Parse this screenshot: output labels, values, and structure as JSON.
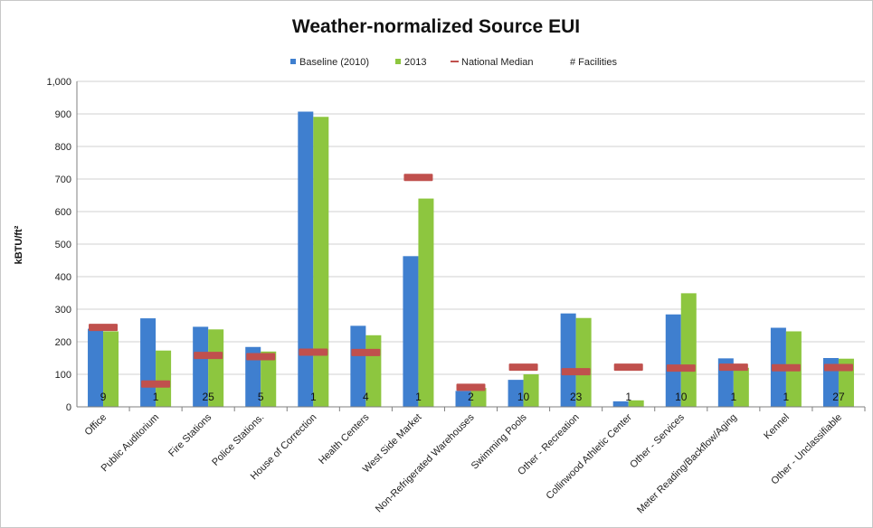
{
  "chart_data": {
    "type": "bar",
    "title": "Weather-normalized Source EUI",
    "ylabel": "kBTU/ft²",
    "xlabel": "",
    "ylim": [
      0,
      1000
    ],
    "yticks": [
      0,
      100,
      200,
      300,
      400,
      500,
      600,
      700,
      800,
      900,
      1000
    ],
    "ytick_labels": [
      "0",
      "100",
      "200",
      "300",
      "400",
      "500",
      "600",
      "700",
      "800",
      "900",
      "1,000"
    ],
    "grid": true,
    "legend_position": "top",
    "categories": [
      "Office",
      "Public Auditorium",
      "Fire Stations",
      "Police Stations.",
      "House of Correction",
      "Health Centers",
      "West Side Market",
      "Non-Refrigerated Warehouses",
      "Swimming Pools",
      "Other - Recreation",
      "Collinwood Athletic Center",
      "Other - Services",
      "Meter Reading/Backflow/Aging",
      "Kennel",
      "Other - Unclassifiable"
    ],
    "series": [
      {
        "name": "Baseline (2010)",
        "color": "#3f7fcf",
        "values": [
          240,
          272,
          246,
          184,
          907,
          249,
          463,
          49,
          83,
          287,
          17,
          284,
          149,
          243,
          150
        ]
      },
      {
        "name": "2013",
        "color": "#8dc63f",
        "values": [
          232,
          173,
          238,
          170,
          891,
          220,
          640,
          58,
          100,
          273,
          20,
          349,
          120,
          232,
          148
        ]
      },
      {
        "name": "National Median",
        "color": "#c0504d",
        "values": [
          244,
          70,
          158,
          154,
          168,
          167,
          705,
          60,
          122,
          108,
          122,
          119,
          122,
          120,
          121
        ]
      },
      {
        "name": "# Facilities",
        "values": [
          9,
          1,
          25,
          5,
          1,
          4,
          1,
          2,
          10,
          23,
          1,
          10,
          1,
          1,
          27
        ]
      }
    ]
  }
}
